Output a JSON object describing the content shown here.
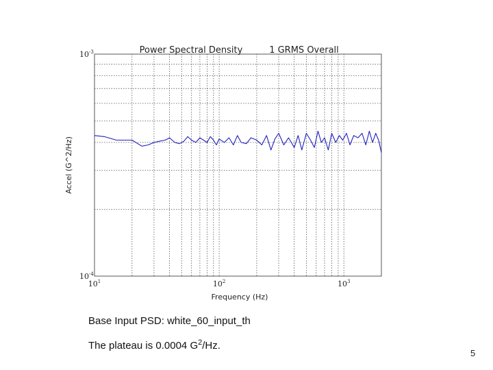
{
  "chart_data": {
    "type": "line",
    "title_left": "Power Spectral Density",
    "title_right": "1 GRMS Overall",
    "xlabel": "Frequency (Hz)",
    "ylabel": "Accel (G^2/Hz)",
    "x_scale": "log",
    "y_scale": "log",
    "xlim": [
      10,
      2000
    ],
    "ylim": [
      0.0001,
      0.001
    ],
    "grid": true,
    "x_ticks": [
      {
        "value": 10,
        "base": "10",
        "exp": "1"
      },
      {
        "value": 100,
        "base": "10",
        "exp": "2"
      },
      {
        "value": 1000,
        "base": "10",
        "exp": "3"
      }
    ],
    "y_ticks": [
      {
        "value": 0.0001,
        "base": "10",
        "exp": "-4"
      },
      {
        "value": 0.001,
        "base": "10",
        "exp": "-3"
      }
    ],
    "series": [
      {
        "color": "#1f1fbf",
        "x": [
          10,
          12,
          15,
          20,
          24,
          27,
          30,
          33,
          37,
          40,
          44,
          48,
          52,
          56,
          60,
          65,
          70,
          75,
          80,
          85,
          90,
          95,
          100,
          110,
          120,
          130,
          140,
          150,
          165,
          180,
          200,
          220,
          240,
          260,
          280,
          300,
          330,
          360,
          400,
          430,
          460,
          500,
          540,
          580,
          620,
          660,
          700,
          750,
          800,
          860,
          920,
          980,
          1050,
          1120,
          1200,
          1300,
          1400,
          1500,
          1600,
          1700,
          1800,
          1900,
          2000
        ],
        "y": [
          0.00043,
          0.000425,
          0.00041,
          0.00041,
          0.000385,
          0.00039,
          0.0004,
          0.000405,
          0.00041,
          0.00042,
          0.0004,
          0.000395,
          0.000405,
          0.000425,
          0.00041,
          0.0004,
          0.00042,
          0.00041,
          0.0004,
          0.000425,
          0.00041,
          0.00039,
          0.000415,
          0.0004,
          0.00042,
          0.00039,
          0.00043,
          0.0004,
          0.000395,
          0.00042,
          0.00041,
          0.00039,
          0.00043,
          0.00037,
          0.000415,
          0.00044,
          0.00039,
          0.00042,
          0.00038,
          0.00043,
          0.00037,
          0.00044,
          0.00041,
          0.00038,
          0.00045,
          0.0004,
          0.00042,
          0.00037,
          0.00044,
          0.0004,
          0.00043,
          0.00041,
          0.00044,
          0.00039,
          0.00043,
          0.00042,
          0.00044,
          0.00039,
          0.00045,
          0.0004,
          0.00044,
          0.00041,
          0.00036
        ]
      }
    ]
  },
  "caption": {
    "line1": "Base Input PSD:   white_60_input_th",
    "line2_prefix": "The plateau is 0.0004 G",
    "line2_sup": "2",
    "line2_suffix": "/Hz."
  },
  "page_number": "5"
}
